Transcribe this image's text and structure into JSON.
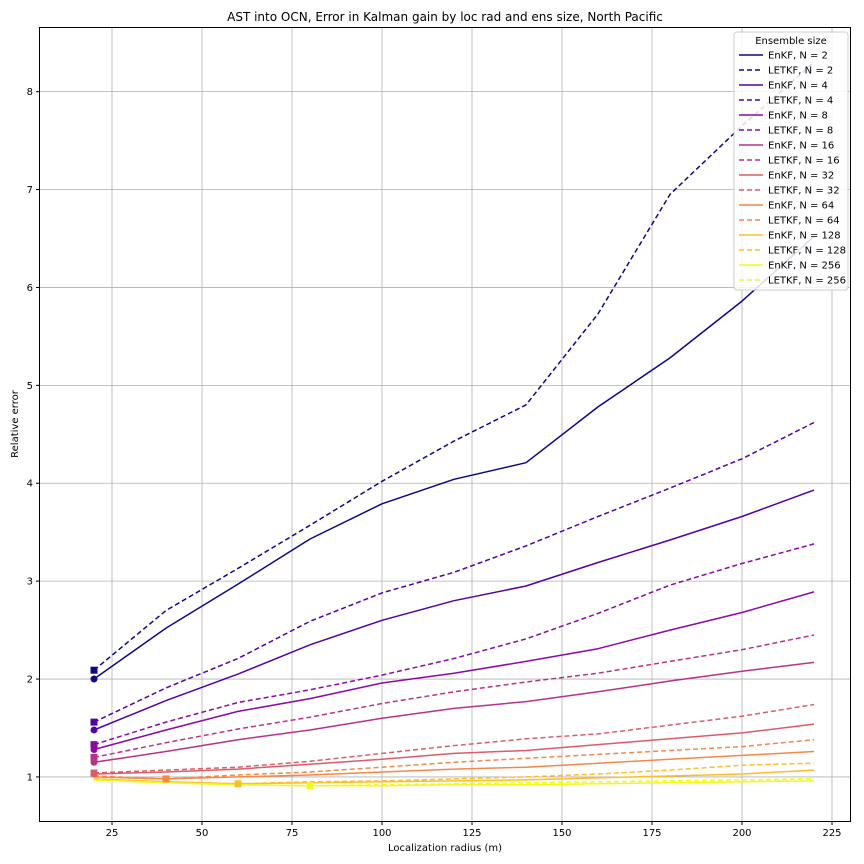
{
  "chart_data": {
    "type": "line",
    "title": "AST into OCN, Error in Kalman gain by loc rad and ens size, North Pacific",
    "xlabel": "Localization radius (m)",
    "ylabel": "Relative error",
    "xlim": [
      5,
      230
    ],
    "ylim": [
      0.55,
      8.65
    ],
    "xticks": [
      25,
      50,
      75,
      100,
      125,
      150,
      175,
      200,
      225
    ],
    "yticks": [
      1,
      2,
      3,
      4,
      5,
      6,
      7,
      8
    ],
    "grid": true,
    "legend": {
      "title": "Ensemble size",
      "placement": "top-right"
    },
    "x": [
      20,
      40,
      60,
      80,
      100,
      120,
      140,
      160,
      180,
      200,
      220
    ],
    "series": [
      {
        "name": "EnKF, N = 2",
        "color": "#0d0887",
        "style": "solid",
        "marker": "circle",
        "min_x": 20,
        "min_y": 2.0,
        "values": [
          2.0,
          2.52,
          2.97,
          3.43,
          3.79,
          4.04,
          4.21,
          4.78,
          5.28,
          5.86,
          6.52
        ]
      },
      {
        "name": "LETKF, N = 2",
        "color": "#0d0887",
        "style": "dashed",
        "marker": "square",
        "min_x": 20,
        "min_y": 2.09,
        "values": [
          2.09,
          2.7,
          3.13,
          3.57,
          4.02,
          4.43,
          4.8,
          5.73,
          6.95,
          7.65,
          8.3
        ]
      },
      {
        "name": "EnKF, N = 4",
        "color": "#5302a3",
        "style": "solid",
        "marker": "circle",
        "min_x": 20,
        "min_y": 1.48,
        "values": [
          1.48,
          1.78,
          2.05,
          2.35,
          2.6,
          2.8,
          2.95,
          3.19,
          3.42,
          3.66,
          3.93
        ]
      },
      {
        "name": "LETKF, N = 4",
        "color": "#5302a3",
        "style": "dashed",
        "marker": "square",
        "min_x": 20,
        "min_y": 1.56,
        "values": [
          1.56,
          1.91,
          2.21,
          2.59,
          2.88,
          3.09,
          3.36,
          3.66,
          3.95,
          4.25,
          4.62
        ]
      },
      {
        "name": "EnKF, N = 8",
        "color": "#8b0aa5",
        "style": "solid",
        "marker": "circle",
        "min_x": 20,
        "min_y": 1.28,
        "values": [
          1.28,
          1.48,
          1.67,
          1.8,
          1.96,
          2.06,
          2.18,
          2.31,
          2.5,
          2.68,
          2.89
        ]
      },
      {
        "name": "LETKF, N = 8",
        "color": "#8b0aa5",
        "style": "dashed",
        "marker": "square",
        "min_x": 20,
        "min_y": 1.33,
        "values": [
          1.33,
          1.56,
          1.76,
          1.89,
          2.04,
          2.21,
          2.41,
          2.67,
          2.96,
          3.18,
          3.38
        ]
      },
      {
        "name": "EnKF, N = 16",
        "color": "#b83289",
        "style": "solid",
        "marker": "circle",
        "min_x": 20,
        "min_y": 1.15,
        "values": [
          1.15,
          1.26,
          1.38,
          1.48,
          1.6,
          1.7,
          1.77,
          1.87,
          1.98,
          2.08,
          2.17
        ]
      },
      {
        "name": "LETKF, N = 16",
        "color": "#b83289",
        "style": "dashed",
        "marker": "square",
        "min_x": 20,
        "min_y": 1.2,
        "values": [
          1.2,
          1.35,
          1.49,
          1.61,
          1.75,
          1.87,
          1.97,
          2.06,
          2.18,
          2.3,
          2.45
        ]
      },
      {
        "name": "EnKF, N = 32",
        "color": "#db5c68",
        "style": "solid",
        "marker": "circle",
        "min_x": 20,
        "min_y": 1.03,
        "values": [
          1.03,
          1.05,
          1.08,
          1.13,
          1.18,
          1.24,
          1.27,
          1.33,
          1.39,
          1.45,
          1.54
        ]
      },
      {
        "name": "LETKF, N = 32",
        "color": "#db5c68",
        "style": "dashed",
        "marker": "square",
        "min_x": 20,
        "min_y": 1.04,
        "values": [
          1.04,
          1.07,
          1.1,
          1.16,
          1.24,
          1.32,
          1.39,
          1.44,
          1.53,
          1.62,
          1.74
        ]
      },
      {
        "name": "EnKF, N = 64",
        "color": "#f48849",
        "style": "solid",
        "marker": "circle",
        "min_x": 40,
        "min_y": 0.98,
        "values": [
          1.0,
          0.98,
          1.0,
          1.02,
          1.05,
          1.08,
          1.1,
          1.14,
          1.18,
          1.22,
          1.26
        ]
      },
      {
        "name": "LETKF, N = 64",
        "color": "#f48849",
        "style": "dashed",
        "marker": "square",
        "min_x": 40,
        "min_y": 0.98,
        "values": [
          1.01,
          0.98,
          1.02,
          1.05,
          1.1,
          1.15,
          1.19,
          1.23,
          1.27,
          1.31,
          1.38
        ]
      },
      {
        "name": "EnKF, N = 128",
        "color": "#febd2a",
        "style": "solid",
        "marker": "circle",
        "min_x": 60,
        "min_y": 0.93,
        "values": [
          0.98,
          0.95,
          0.93,
          0.94,
          0.95,
          0.96,
          0.97,
          0.99,
          1.01,
          1.03,
          1.07
        ]
      },
      {
        "name": "LETKF, N = 128",
        "color": "#febd2a",
        "style": "dashed",
        "marker": "square",
        "min_x": 60,
        "min_y": 0.93,
        "values": [
          0.98,
          0.95,
          0.93,
          0.95,
          0.96,
          0.98,
          1.0,
          1.03,
          1.07,
          1.12,
          1.14
        ]
      },
      {
        "name": "EnKF, N = 256",
        "color": "#f0f921",
        "style": "solid",
        "marker": "circle",
        "min_x": 80,
        "min_y": 0.91,
        "values": [
          0.97,
          0.94,
          0.92,
          0.91,
          0.91,
          0.92,
          0.92,
          0.93,
          0.94,
          0.95,
          0.96
        ]
      },
      {
        "name": "LETKF, N = 256",
        "color": "#f0f921",
        "style": "dashed",
        "marker": "square",
        "min_x": 80,
        "min_y": 0.91,
        "values": [
          0.97,
          0.94,
          0.92,
          0.91,
          0.92,
          0.93,
          0.94,
          0.95,
          0.96,
          0.97,
          0.98
        ]
      }
    ]
  }
}
